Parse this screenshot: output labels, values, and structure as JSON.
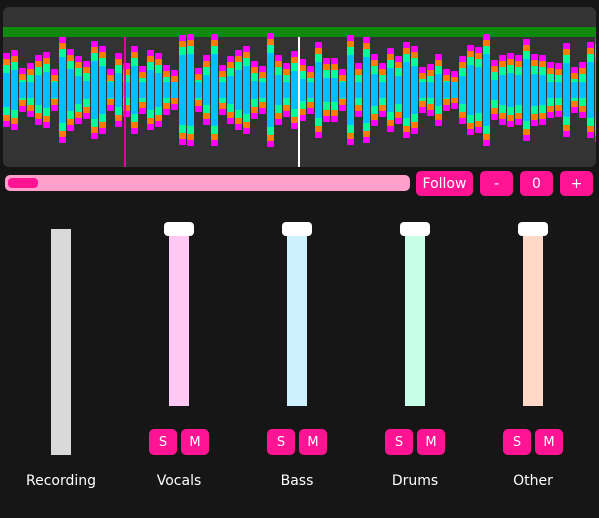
{
  "colors": {
    "accent": "#ff1493",
    "waveform_panel": "#333333",
    "waveform_top_bar": "#0f8a0f",
    "waveform_magenta": "#ff00ff",
    "waveform_orange": "#ff7a00",
    "waveform_green": "#00ff99",
    "waveform_cyan": "#00bfff",
    "playhead": "#ffffff",
    "loop_marker": "#e8009a",
    "progress_track": "#ff9fcc",
    "recording_meter": "#d9d9d9"
  },
  "transport": {
    "follow_label": "Follow",
    "minus_label": "-",
    "offset_value": "0",
    "plus_label": "+",
    "progress_fraction": 0.06
  },
  "recording": {
    "label": "Recording"
  },
  "channels": [
    {
      "label": "Vocals",
      "solo_label": "S",
      "mute_label": "M",
      "fader_color": "#ffc8f5",
      "fader_level": 1.0
    },
    {
      "label": "Bass",
      "solo_label": "S",
      "mute_label": "M",
      "fader_color": "#cdf1ff",
      "fader_level": 1.0
    },
    {
      "label": "Drums",
      "solo_label": "S",
      "mute_label": "M",
      "fader_color": "#c8ffe9",
      "fader_level": 1.0
    },
    {
      "label": "Other",
      "solo_label": "S",
      "mute_label": "M",
      "fader_color": "#ffd8c8",
      "fader_level": 1.0
    }
  ]
}
